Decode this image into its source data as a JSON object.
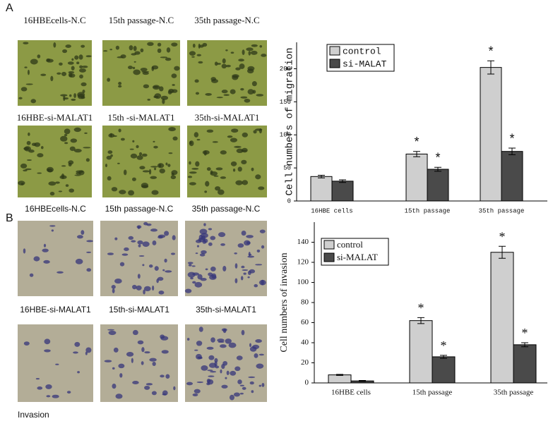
{
  "panels": [
    {
      "label": "A",
      "captions": [
        "16HBEcells-N.C",
        "15th passage-N.C",
        "35th passage-N.C",
        "16HBE-si-MALAT1",
        "15th -si-MALAT1",
        "35th-si-MALAT1"
      ]
    },
    {
      "label": "B",
      "captions": [
        "16HBEcells-N.C",
        "15th passage-N.C",
        "35th passage-N.C",
        "16HBE-si-MALAT1",
        "15th-si-MALAT1",
        "35th-si-MALAT1"
      ]
    }
  ],
  "footer": "Invasion",
  "chart_data": [
    {
      "type": "bar",
      "y_label": "Cell numbers of migration",
      "categories": [
        "16HBE cells",
        "15th passage",
        "35th passage"
      ],
      "series": [
        {
          "name": "control",
          "color": "#cfcfcf",
          "values": [
            37,
            71,
            202
          ],
          "errors": [
            2,
            4,
            10
          ],
          "marks": [
            null,
            "*",
            "*"
          ]
        },
        {
          "name": "si-MALAT",
          "color": "#4a4a4a",
          "values": [
            30,
            48,
            75
          ],
          "errors": [
            2,
            3,
            5
          ],
          "marks": [
            null,
            "*",
            "*"
          ]
        }
      ],
      "ylim": [
        0,
        240
      ],
      "yticks": [
        0,
        50,
        100,
        150,
        200
      ],
      "legend": "top-left"
    },
    {
      "type": "bar",
      "y_label": "Cell numbers of invasion",
      "categories": [
        "16HBE cells",
        "15th passage",
        "35th passage"
      ],
      "series": [
        {
          "name": "control",
          "color": "#cfcfcf",
          "values": [
            8,
            62,
            130
          ],
          "errors": [
            0.5,
            3,
            6
          ],
          "marks": [
            null,
            "*",
            "*"
          ]
        },
        {
          "name": "si-MALAT",
          "color": "#4a4a4a",
          "values": [
            2,
            26,
            38
          ],
          "errors": [
            0.5,
            1.5,
            2
          ],
          "marks": [
            null,
            "*",
            "*"
          ]
        }
      ],
      "ylim": [
        0,
        160
      ],
      "yticks": [
        0,
        20,
        40,
        60,
        80,
        100,
        120,
        140
      ],
      "legend": "top-left"
    }
  ]
}
